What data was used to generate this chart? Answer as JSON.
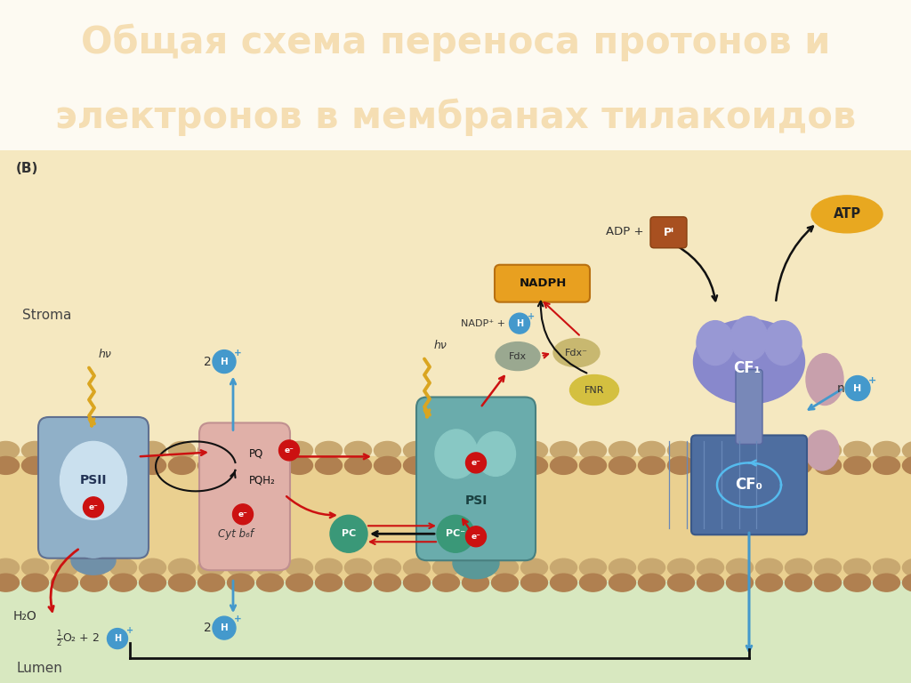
{
  "title_line1": "Общая схема переноса протонов и",
  "title_line2": "электронов в мембранах тилакоидов",
  "title_bg": "#8B0000",
  "title_color": "#F5DEB3",
  "bg_color": "#FDFAF2",
  "stroma_bg": "#F7EDD0",
  "lumen_bg": "#E2ECC8",
  "membrane_color1": "#D4B080",
  "membrane_color2": "#B8906A",
  "psii_outer": "#8AAFC8",
  "psii_inner_color": "#C8DCE8",
  "psii_bot_color": "#7095AE",
  "pq_color": "#E0B0A8",
  "psi_color": "#6BAEAE",
  "psi_inner": "#88C8C4",
  "cf1_color": "#8888C8",
  "cf1_lobe": "#9898D4",
  "cf0_color": "#4E6EA0",
  "cf_stalk": "#7888B8",
  "cf_side": "#C8A0AC",
  "electron_red": "#CC1111",
  "proton_blue": "#4499CC",
  "arrow_black": "#111111",
  "nadph_orange": "#E8A020",
  "fdx_grey": "#9AA890",
  "fdxm_yellow": "#C8B870",
  "fnr_yellow": "#D4C040",
  "pc_teal": "#3A9878",
  "adp_brown": "#C06820",
  "atp_orange": "#E8A820",
  "pi_brown": "#A85020",
  "label_b": "(B)",
  "label_stroma": "Stroma",
  "label_lumen": "Lumen",
  "label_psii": "PSII",
  "label_psi": "PSI",
  "label_pq": "PQ",
  "label_pqh2": "PQH₂",
  "label_cytb6f": "Cyt b₆f",
  "label_pc": "PC",
  "label_pcm": "PC⁻",
  "label_fdx": "Fdx",
  "label_fdxm": "Fdx⁻",
  "label_fnr": "FNR",
  "label_nadph": "NADPH",
  "label_nadp": "NADP⁺",
  "label_cf1": "CF₁",
  "label_cf0": "CF₀",
  "label_adp": "ADP +",
  "label_pi": "Pᴵ",
  "label_atp": "ATP",
  "label_h2o": "H₂O",
  "label_hv": "hν"
}
